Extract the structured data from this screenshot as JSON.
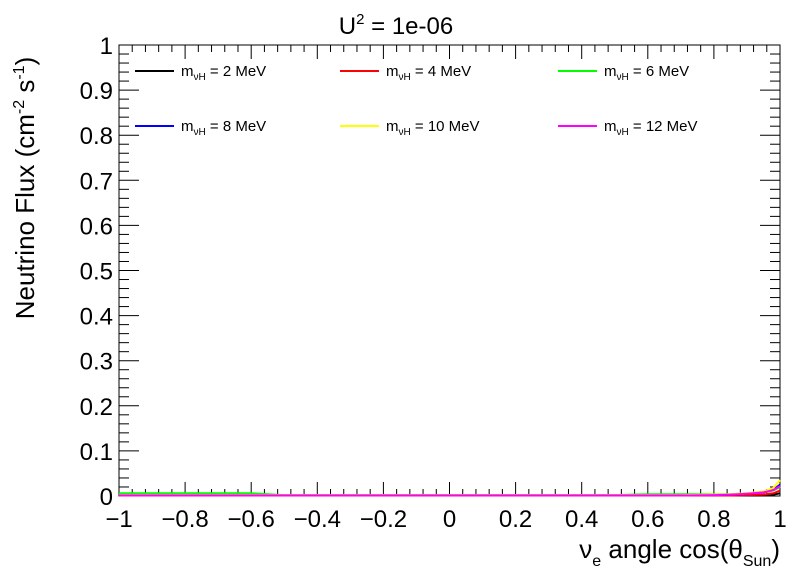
{
  "chart_data": {
    "type": "line",
    "title": {
      "base": "U",
      "sup": "2",
      "rest": " = 1e-06"
    },
    "xlabel": {
      "nu": "ν",
      "sub_e": "e",
      "text": " angle cos(θ",
      "sub_sun": "Sun",
      "close": ")"
    },
    "ylabel": {
      "text1": "Neutrino Flux (cm",
      "sup1": "-2",
      "text2": " s",
      "sup2": "-1",
      "text3": ")"
    },
    "xlim": [
      -1,
      1
    ],
    "ylim": [
      0,
      1
    ],
    "x_ticks": [
      {
        "v": -1,
        "label": "−1"
      },
      {
        "v": -0.8,
        "label": "−0.8"
      },
      {
        "v": -0.6,
        "label": "−0.6"
      },
      {
        "v": -0.4,
        "label": "−0.4"
      },
      {
        "v": -0.2,
        "label": "−0.2"
      },
      {
        "v": 0,
        "label": "0"
      },
      {
        "v": 0.2,
        "label": "0.2"
      },
      {
        "v": 0.4,
        "label": "0.4"
      },
      {
        "v": 0.6,
        "label": "0.6"
      },
      {
        "v": 0.8,
        "label": "0.8"
      },
      {
        "v": 1,
        "label": "1"
      }
    ],
    "y_ticks": [
      {
        "v": 0,
        "label": "0"
      },
      {
        "v": 0.1,
        "label": "0.1"
      },
      {
        "v": 0.2,
        "label": "0.2"
      },
      {
        "v": 0.3,
        "label": "0.3"
      },
      {
        "v": 0.4,
        "label": "0.4"
      },
      {
        "v": 0.5,
        "label": "0.5"
      },
      {
        "v": 0.6,
        "label": "0.6"
      },
      {
        "v": 0.7,
        "label": "0.7"
      },
      {
        "v": 0.8,
        "label": "0.8"
      },
      {
        "v": 0.9,
        "label": "0.9"
      },
      {
        "v": 1,
        "label": "1"
      }
    ],
    "grid": false,
    "legend_placement": "top",
    "x": [
      -1.0,
      -0.9,
      -0.8,
      -0.7,
      -0.6,
      -0.5,
      -0.4,
      -0.3,
      -0.2,
      -0.1,
      0.0,
      0.1,
      0.2,
      0.3,
      0.4,
      0.5,
      0.6,
      0.7,
      0.8,
      0.85,
      0.9,
      0.95,
      0.98,
      1.0
    ],
    "series": [
      {
        "legend": {
          "m": "m",
          "sub": "νH",
          "val": " = 2 MeV"
        },
        "color": "#000000",
        "values": [
          0.001,
          0.001,
          0.001,
          0.001,
          0.001,
          0.001,
          0.001,
          0.001,
          0.001,
          0.001,
          0.001,
          0.001,
          0.001,
          0.001,
          0.001,
          0.001,
          0.001,
          0.001,
          0.001,
          0.001,
          0.001,
          0.002,
          0.003,
          0.006
        ]
      },
      {
        "legend": {
          "m": "m",
          "sub": "νH",
          "val": " = 4 MeV"
        },
        "color": "#ff0000",
        "values": [
          0.001,
          0.001,
          0.001,
          0.001,
          0.001,
          0.001,
          0.001,
          0.001,
          0.001,
          0.001,
          0.001,
          0.001,
          0.001,
          0.001,
          0.001,
          0.001,
          0.001,
          0.001,
          0.001,
          0.001,
          0.002,
          0.003,
          0.006,
          0.012
        ]
      },
      {
        "legend": {
          "m": "m",
          "sub": "νH",
          "val": " = 6 MeV"
        },
        "color": "#00ff00",
        "values": [
          0.006,
          0.006,
          0.006,
          0.006,
          0.006,
          0.002,
          0.002,
          0.002,
          0.002,
          0.002,
          0.002,
          0.002,
          0.002,
          0.002,
          0.002,
          0.002,
          0.004,
          0.004,
          0.004,
          0.004,
          0.006,
          0.008,
          0.012,
          0.02
        ]
      },
      {
        "legend": {
          "m": "m",
          "sub": "νH",
          "val": " = 8 MeV"
        },
        "color": "#0000ff",
        "values": [
          0.002,
          0.002,
          0.002,
          0.002,
          0.002,
          0.002,
          0.002,
          0.002,
          0.002,
          0.002,
          0.002,
          0.002,
          0.002,
          0.002,
          0.002,
          0.002,
          0.002,
          0.002,
          0.002,
          0.003,
          0.005,
          0.008,
          0.014,
          0.025
        ]
      },
      {
        "legend": {
          "m": "m",
          "sub": "νH",
          "val": " = 10 MeV"
        },
        "color": "#ffff00",
        "values": [
          0.002,
          0.002,
          0.002,
          0.002,
          0.002,
          0.002,
          0.002,
          0.002,
          0.002,
          0.002,
          0.002,
          0.002,
          0.002,
          0.002,
          0.002,
          0.002,
          0.002,
          0.002,
          0.003,
          0.004,
          0.006,
          0.01,
          0.018,
          0.035
        ]
      },
      {
        "legend": {
          "m": "m",
          "sub": "νH",
          "val": " = 12 MeV"
        },
        "color": "#ff00ff",
        "values": [
          0.001,
          0.001,
          0.001,
          0.001,
          0.001,
          0.001,
          0.001,
          0.001,
          0.001,
          0.001,
          0.001,
          0.001,
          0.001,
          0.001,
          0.001,
          0.001,
          0.001,
          0.001,
          0.002,
          0.003,
          0.005,
          0.008,
          0.013,
          0.022
        ]
      }
    ]
  }
}
